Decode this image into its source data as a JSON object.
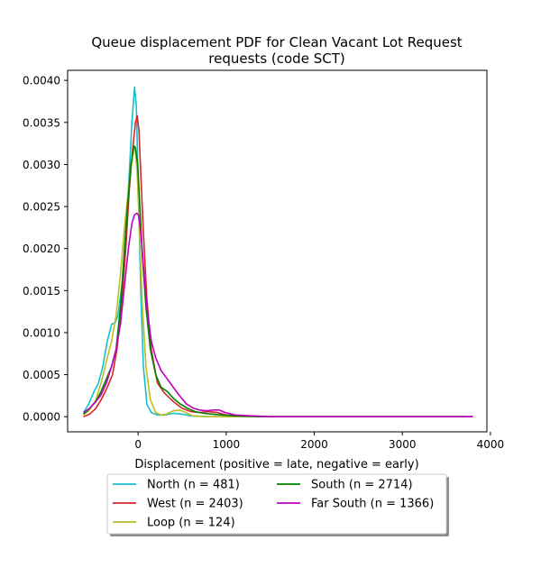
{
  "chart_data": {
    "type": "line",
    "title_line1": "Queue displacement PDF for Clean Vacant Lot Request",
    "title_line2": "requests (code SCT)",
    "xlabel": "Displacement (positive = late, negative = early)",
    "ylabel": "",
    "xlim": [
      -800,
      3960
    ],
    "ylim": [
      -0.00018,
      0.00412
    ],
    "x_ticks": [
      0,
      1000,
      2000,
      3000,
      4000
    ],
    "x_tick_labels": [
      "0",
      "1000",
      "2000",
      "3000",
      "4000"
    ],
    "y_ticks": [
      0.0,
      0.0005,
      0.001,
      0.0015,
      0.002,
      0.0025,
      0.003,
      0.0035,
      0.004
    ],
    "y_tick_labels": [
      "0.0000",
      "0.0005",
      "0.0010",
      "0.0015",
      "0.0020",
      "0.0025",
      "0.0030",
      "0.0035",
      "0.0040"
    ],
    "grid": false,
    "legend": {
      "placement": "below plot, two columns",
      "shadow": true
    },
    "series": [
      {
        "name": "North (n = 481)",
        "color": "#17becf",
        "points": [
          [
            -620,
            5e-05
          ],
          [
            -560,
            0.00015
          ],
          [
            -500,
            0.0003
          ],
          [
            -450,
            0.0004
          ],
          [
            -400,
            0.0006
          ],
          [
            -350,
            0.0009
          ],
          [
            -300,
            0.0011
          ],
          [
            -260,
            0.00112
          ],
          [
            -230,
            0.0012
          ],
          [
            -180,
            0.0016
          ],
          [
            -140,
            0.0022
          ],
          [
            -100,
            0.0029
          ],
          [
            -70,
            0.0035
          ],
          [
            -40,
            0.00392
          ],
          [
            -20,
            0.0037
          ],
          [
            0,
            0.0028
          ],
          [
            30,
            0.0015
          ],
          [
            60,
            0.0006
          ],
          [
            100,
            0.00015
          ],
          [
            150,
            5e-05
          ],
          [
            220,
            2e-05
          ],
          [
            300,
            2e-05
          ],
          [
            400,
            4e-05
          ],
          [
            500,
            3e-05
          ],
          [
            600,
            1e-05
          ],
          [
            800,
            0.0
          ],
          [
            1000,
            0.0
          ],
          [
            2000,
            0.0
          ],
          [
            3000,
            0.0
          ],
          [
            3800,
            0.0
          ]
        ]
      },
      {
        "name": "West (n = 2403)",
        "color": "#d62728",
        "points": [
          [
            -620,
            0.0
          ],
          [
            -550,
            3e-05
          ],
          [
            -480,
            0.0001
          ],
          [
            -420,
            0.0002
          ],
          [
            -350,
            0.00035
          ],
          [
            -290,
            0.0005
          ],
          [
            -240,
            0.0008
          ],
          [
            -190,
            0.0013
          ],
          [
            -140,
            0.002
          ],
          [
            -100,
            0.0027
          ],
          [
            -60,
            0.0032
          ],
          [
            -30,
            0.0035
          ],
          [
            -10,
            0.00358
          ],
          [
            10,
            0.0034
          ],
          [
            30,
            0.0029
          ],
          [
            60,
            0.0022
          ],
          [
            100,
            0.0014
          ],
          [
            150,
            0.0008
          ],
          [
            220,
            0.0004
          ],
          [
            300,
            0.00028
          ],
          [
            400,
            0.00018
          ],
          [
            500,
            0.0001
          ],
          [
            600,
            6e-05
          ],
          [
            700,
            5e-05
          ],
          [
            800,
            6e-05
          ],
          [
            900,
            5e-05
          ],
          [
            1000,
            2e-05
          ],
          [
            1200,
            1e-05
          ],
          [
            1500,
            0.0
          ],
          [
            2000,
            0.0
          ],
          [
            3000,
            0.0
          ],
          [
            3800,
            0.0
          ]
        ]
      },
      {
        "name": "Loop (n = 124)",
        "color": "#bcbd22",
        "points": [
          [
            -620,
            2e-05
          ],
          [
            -550,
            8e-05
          ],
          [
            -480,
            0.0002
          ],
          [
            -420,
            0.0004
          ],
          [
            -350,
            0.0007
          ],
          [
            -300,
            0.0009
          ],
          [
            -250,
            0.0012
          ],
          [
            -200,
            0.0017
          ],
          [
            -150,
            0.0023
          ],
          [
            -100,
            0.0028
          ],
          [
            -60,
            0.0031
          ],
          [
            -35,
            0.00322
          ],
          [
            -10,
            0.0029
          ],
          [
            20,
            0.0021
          ],
          [
            50,
            0.0013
          ],
          [
            90,
            0.0006
          ],
          [
            140,
            0.0002
          ],
          [
            200,
            5e-05
          ],
          [
            260,
            2e-05
          ],
          [
            320,
            3e-05
          ],
          [
            400,
            7e-05
          ],
          [
            470,
            8e-05
          ],
          [
            540,
            5e-05
          ],
          [
            620,
            1e-05
          ],
          [
            800,
            0.0
          ],
          [
            1000,
            0.0
          ],
          [
            2000,
            0.0
          ],
          [
            3000,
            0.0
          ],
          [
            3800,
            0.0
          ]
        ]
      },
      {
        "name": "South (n = 2714)",
        "color": "#008000",
        "points": [
          [
            -620,
            3e-05
          ],
          [
            -550,
            0.0001
          ],
          [
            -480,
            0.00018
          ],
          [
            -420,
            0.0003
          ],
          [
            -360,
            0.00045
          ],
          [
            -300,
            0.0006
          ],
          [
            -250,
            0.0008
          ],
          [
            -200,
            0.0013
          ],
          [
            -160,
            0.0019
          ],
          [
            -120,
            0.0025
          ],
          [
            -80,
            0.003
          ],
          [
            -50,
            0.00322
          ],
          [
            -30,
            0.0032
          ],
          [
            -5,
            0.003
          ],
          [
            20,
            0.0025
          ],
          [
            50,
            0.0019
          ],
          [
            90,
            0.0013
          ],
          [
            140,
            0.0008
          ],
          [
            200,
            0.0005
          ],
          [
            260,
            0.00035
          ],
          [
            330,
            0.0003
          ],
          [
            400,
            0.00022
          ],
          [
            480,
            0.00015
          ],
          [
            560,
            0.0001
          ],
          [
            650,
            6e-05
          ],
          [
            750,
            4e-05
          ],
          [
            850,
            3e-05
          ],
          [
            950,
            2e-05
          ],
          [
            1100,
            1e-05
          ],
          [
            1400,
            0.0
          ],
          [
            2000,
            0.0
          ],
          [
            3000,
            0.0
          ],
          [
            3800,
            0.0
          ]
        ]
      },
      {
        "name": "Far South (n = 1366)",
        "color": "#c000c0",
        "points": [
          [
            -620,
            5e-05
          ],
          [
            -550,
            0.0001
          ],
          [
            -480,
            0.00018
          ],
          [
            -420,
            0.00026
          ],
          [
            -360,
            0.0004
          ],
          [
            -300,
            0.0006
          ],
          [
            -250,
            0.0008
          ],
          [
            -200,
            0.0011
          ],
          [
            -150,
            0.0016
          ],
          [
            -110,
            0.002
          ],
          [
            -70,
            0.0023
          ],
          [
            -40,
            0.0024
          ],
          [
            -15,
            0.00242
          ],
          [
            5,
            0.0024
          ],
          [
            30,
            0.0022
          ],
          [
            60,
            0.0018
          ],
          [
            100,
            0.0013
          ],
          [
            150,
            0.0009
          ],
          [
            200,
            0.0007
          ],
          [
            260,
            0.00055
          ],
          [
            330,
            0.00045
          ],
          [
            400,
            0.00035
          ],
          [
            470,
            0.00025
          ],
          [
            550,
            0.00015
          ],
          [
            630,
            0.0001
          ],
          [
            700,
            8e-05
          ],
          [
            780,
            7e-05
          ],
          [
            850,
            8e-05
          ],
          [
            920,
            8e-05
          ],
          [
            990,
            5e-05
          ],
          [
            1100,
            2e-05
          ],
          [
            1300,
            1e-05
          ],
          [
            1500,
            0.0
          ],
          [
            2000,
            0.0
          ],
          [
            3000,
            0.0
          ],
          [
            3800,
            0.0
          ]
        ]
      }
    ]
  }
}
